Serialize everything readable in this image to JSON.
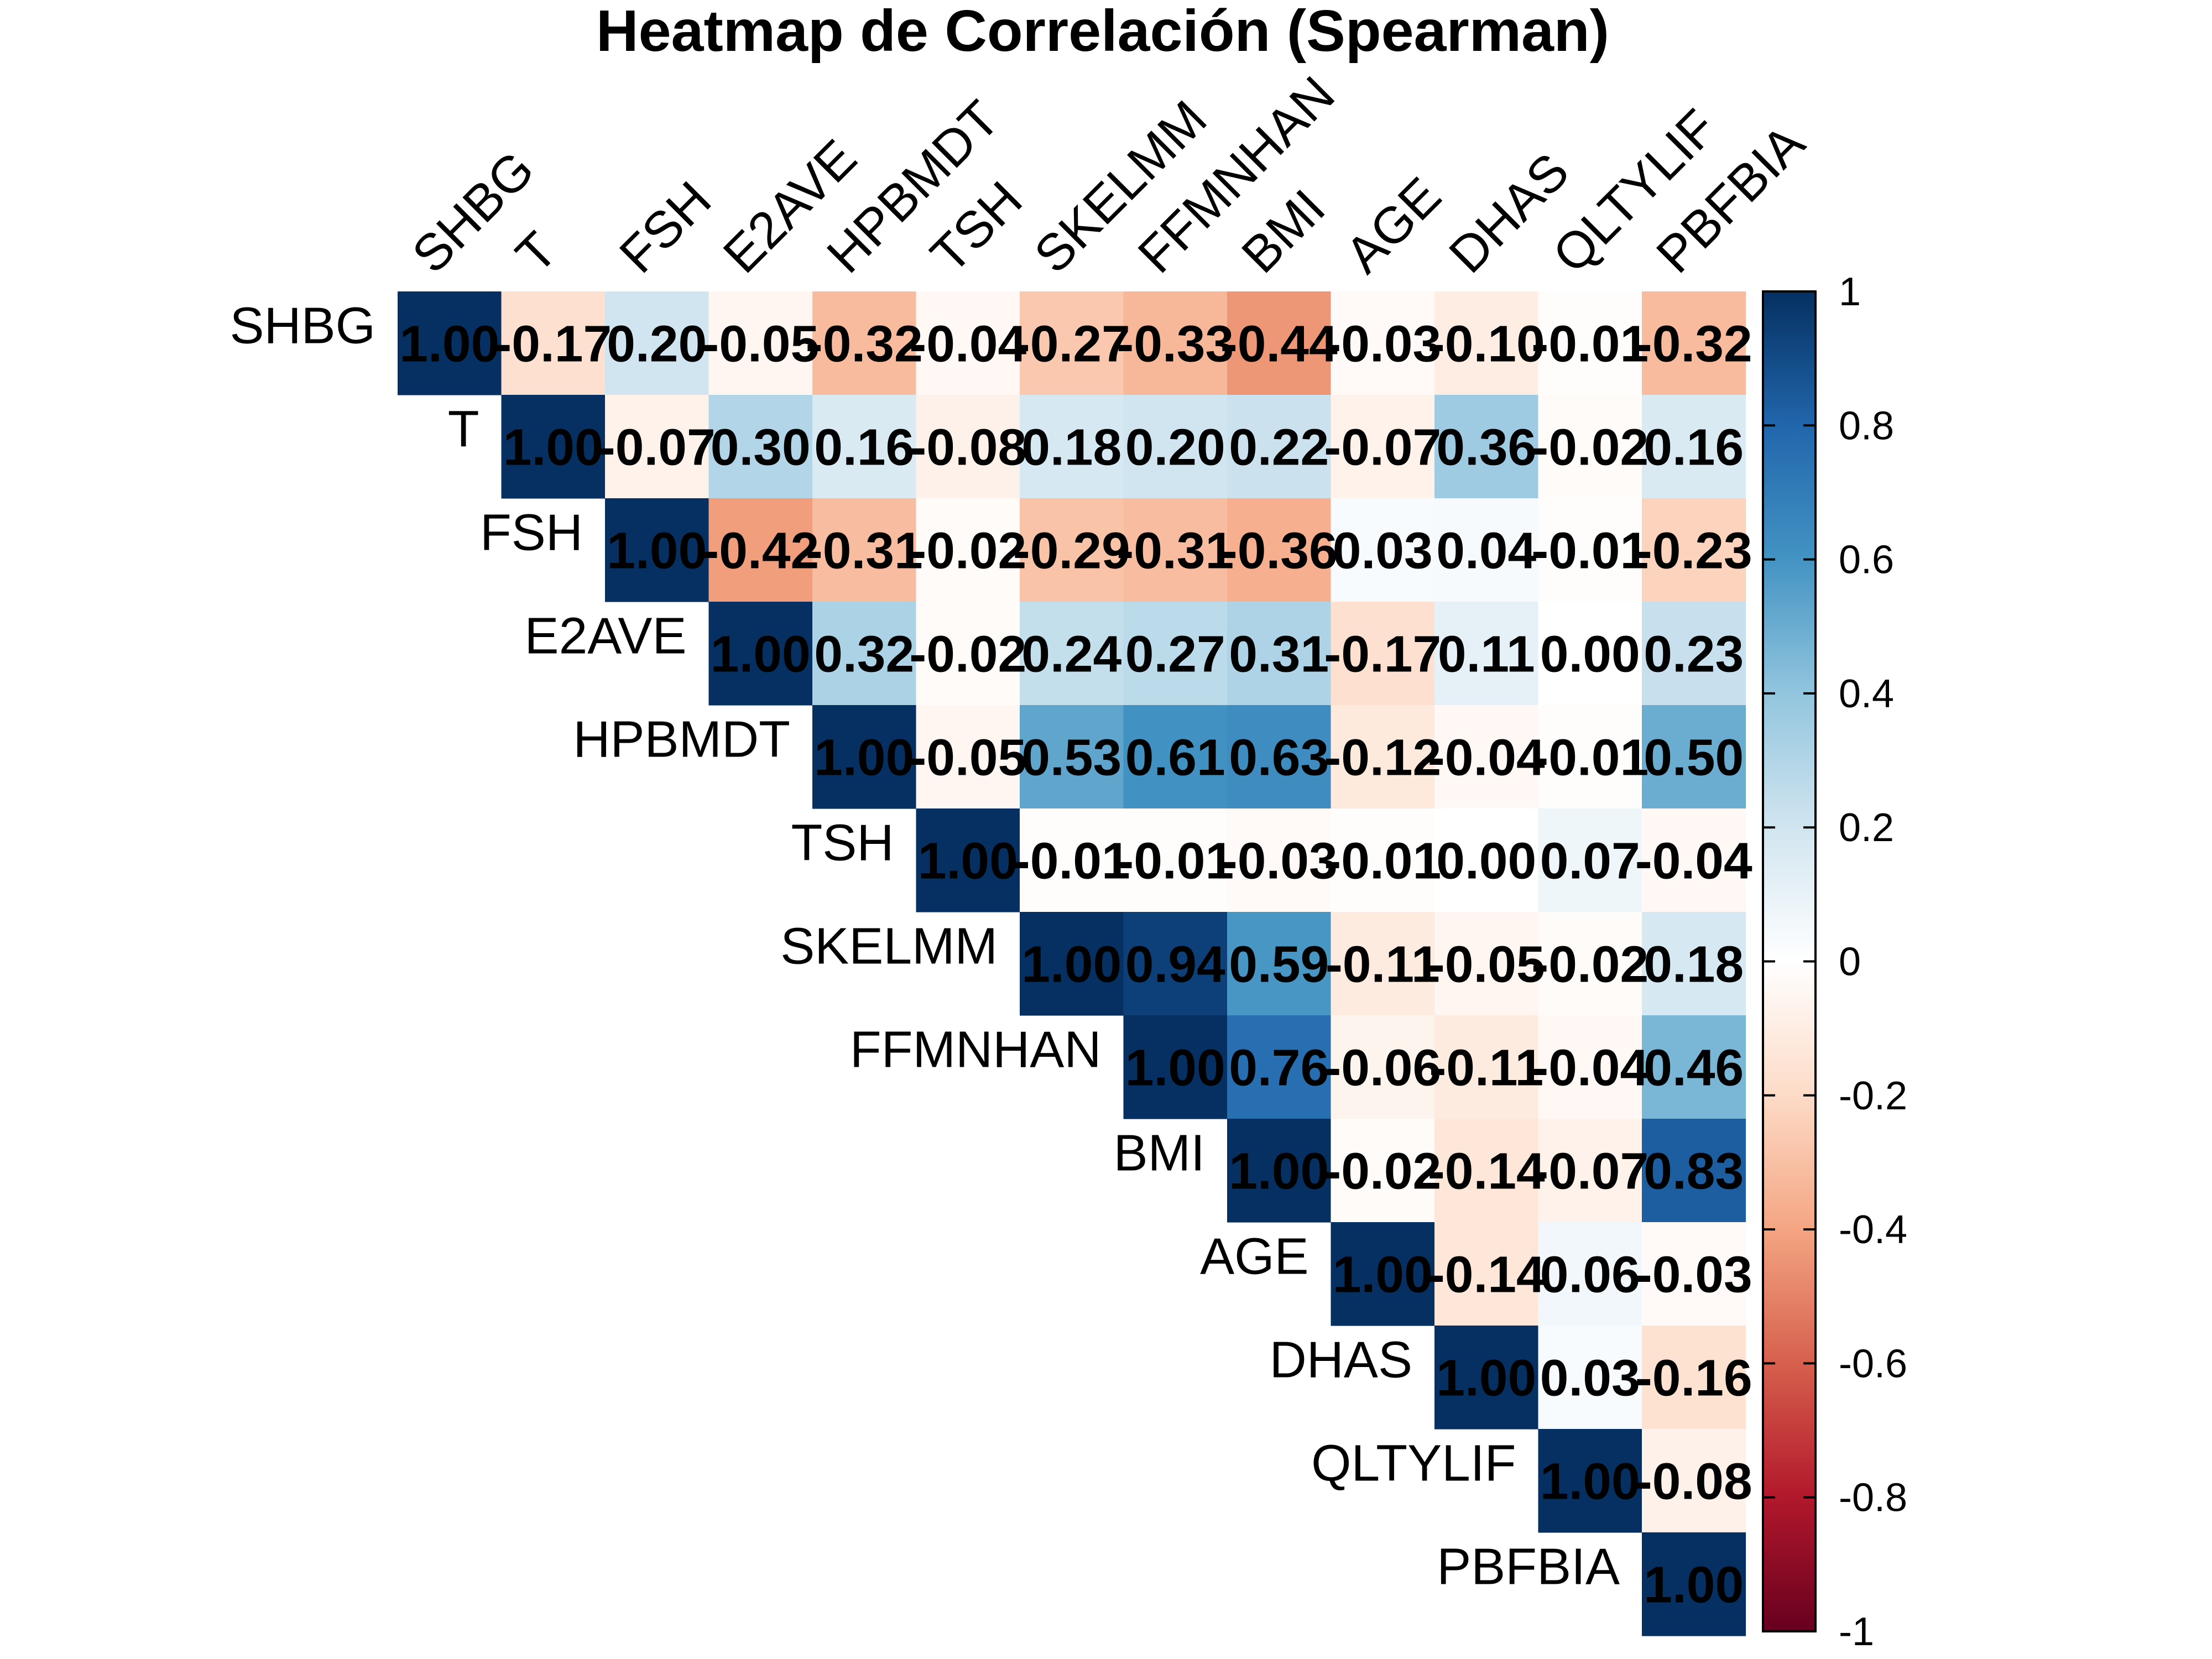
{
  "chart_data": {
    "type": "heatmap",
    "title": "Heatmap de Correlación (Spearman)",
    "variables": [
      "SHBG",
      "T",
      "FSH",
      "E2AVE",
      "HPBMDT",
      "TSH",
      "SKELMM",
      "FFMNHAN",
      "BMI",
      "AGE",
      "DHAS",
      "QLTYLIF",
      "PBFBIA"
    ],
    "layout": "upper-triangle",
    "matrix": [
      [
        1.0,
        -0.17,
        0.2,
        -0.05,
        -0.32,
        -0.04,
        -0.27,
        -0.33,
        -0.44,
        -0.03,
        -0.1,
        -0.01,
        -0.32
      ],
      [
        null,
        1.0,
        -0.07,
        0.3,
        0.16,
        -0.08,
        0.18,
        0.2,
        0.22,
        -0.07,
        0.36,
        -0.02,
        0.16
      ],
      [
        null,
        null,
        1.0,
        -0.42,
        -0.31,
        -0.02,
        -0.29,
        -0.31,
        -0.36,
        0.03,
        0.04,
        -0.01,
        -0.23
      ],
      [
        null,
        null,
        null,
        1.0,
        0.32,
        -0.02,
        0.24,
        0.27,
        0.31,
        -0.17,
        0.11,
        0.0,
        0.23
      ],
      [
        null,
        null,
        null,
        null,
        1.0,
        -0.05,
        0.53,
        0.61,
        0.63,
        -0.12,
        -0.04,
        -0.01,
        0.5
      ],
      [
        null,
        null,
        null,
        null,
        null,
        1.0,
        -0.01,
        -0.01,
        -0.03,
        -0.01,
        0.0,
        0.07,
        -0.04
      ],
      [
        null,
        null,
        null,
        null,
        null,
        null,
        1.0,
        0.94,
        0.59,
        -0.11,
        -0.05,
        -0.02,
        0.18
      ],
      [
        null,
        null,
        null,
        null,
        null,
        null,
        null,
        1.0,
        0.76,
        -0.06,
        -0.11,
        -0.04,
        0.46
      ],
      [
        null,
        null,
        null,
        null,
        null,
        null,
        null,
        null,
        1.0,
        -0.02,
        -0.14,
        -0.07,
        0.83
      ],
      [
        null,
        null,
        null,
        null,
        null,
        null,
        null,
        null,
        null,
        1.0,
        -0.14,
        0.06,
        -0.03
      ],
      [
        null,
        null,
        null,
        null,
        null,
        null,
        null,
        null,
        null,
        null,
        1.0,
        0.03,
        -0.16
      ],
      [
        null,
        null,
        null,
        null,
        null,
        null,
        null,
        null,
        null,
        null,
        null,
        1.0,
        -0.08
      ],
      [
        null,
        null,
        null,
        null,
        null,
        null,
        null,
        null,
        null,
        null,
        null,
        null,
        1.0
      ]
    ],
    "colorbar": {
      "range": [
        -1,
        1
      ],
      "ticks": [
        1,
        0.8,
        0.6,
        0.4,
        0.2,
        0,
        -0.2,
        -0.4,
        -0.6,
        -0.8,
        -1
      ],
      "tick_labels": [
        "1",
        "0.8",
        "0.6",
        "0.4",
        "0.2",
        "0",
        "-0.2",
        "-0.4",
        "-0.6",
        "-0.8",
        "-1"
      ]
    },
    "colors": {
      "scale": [
        "#67001F",
        "#B2182B",
        "#D6604D",
        "#F4A582",
        "#FDDBC7",
        "#FFFFFF",
        "#D1E5F0",
        "#92C5DE",
        "#4393C3",
        "#2166AC",
        "#053061"
      ]
    }
  }
}
